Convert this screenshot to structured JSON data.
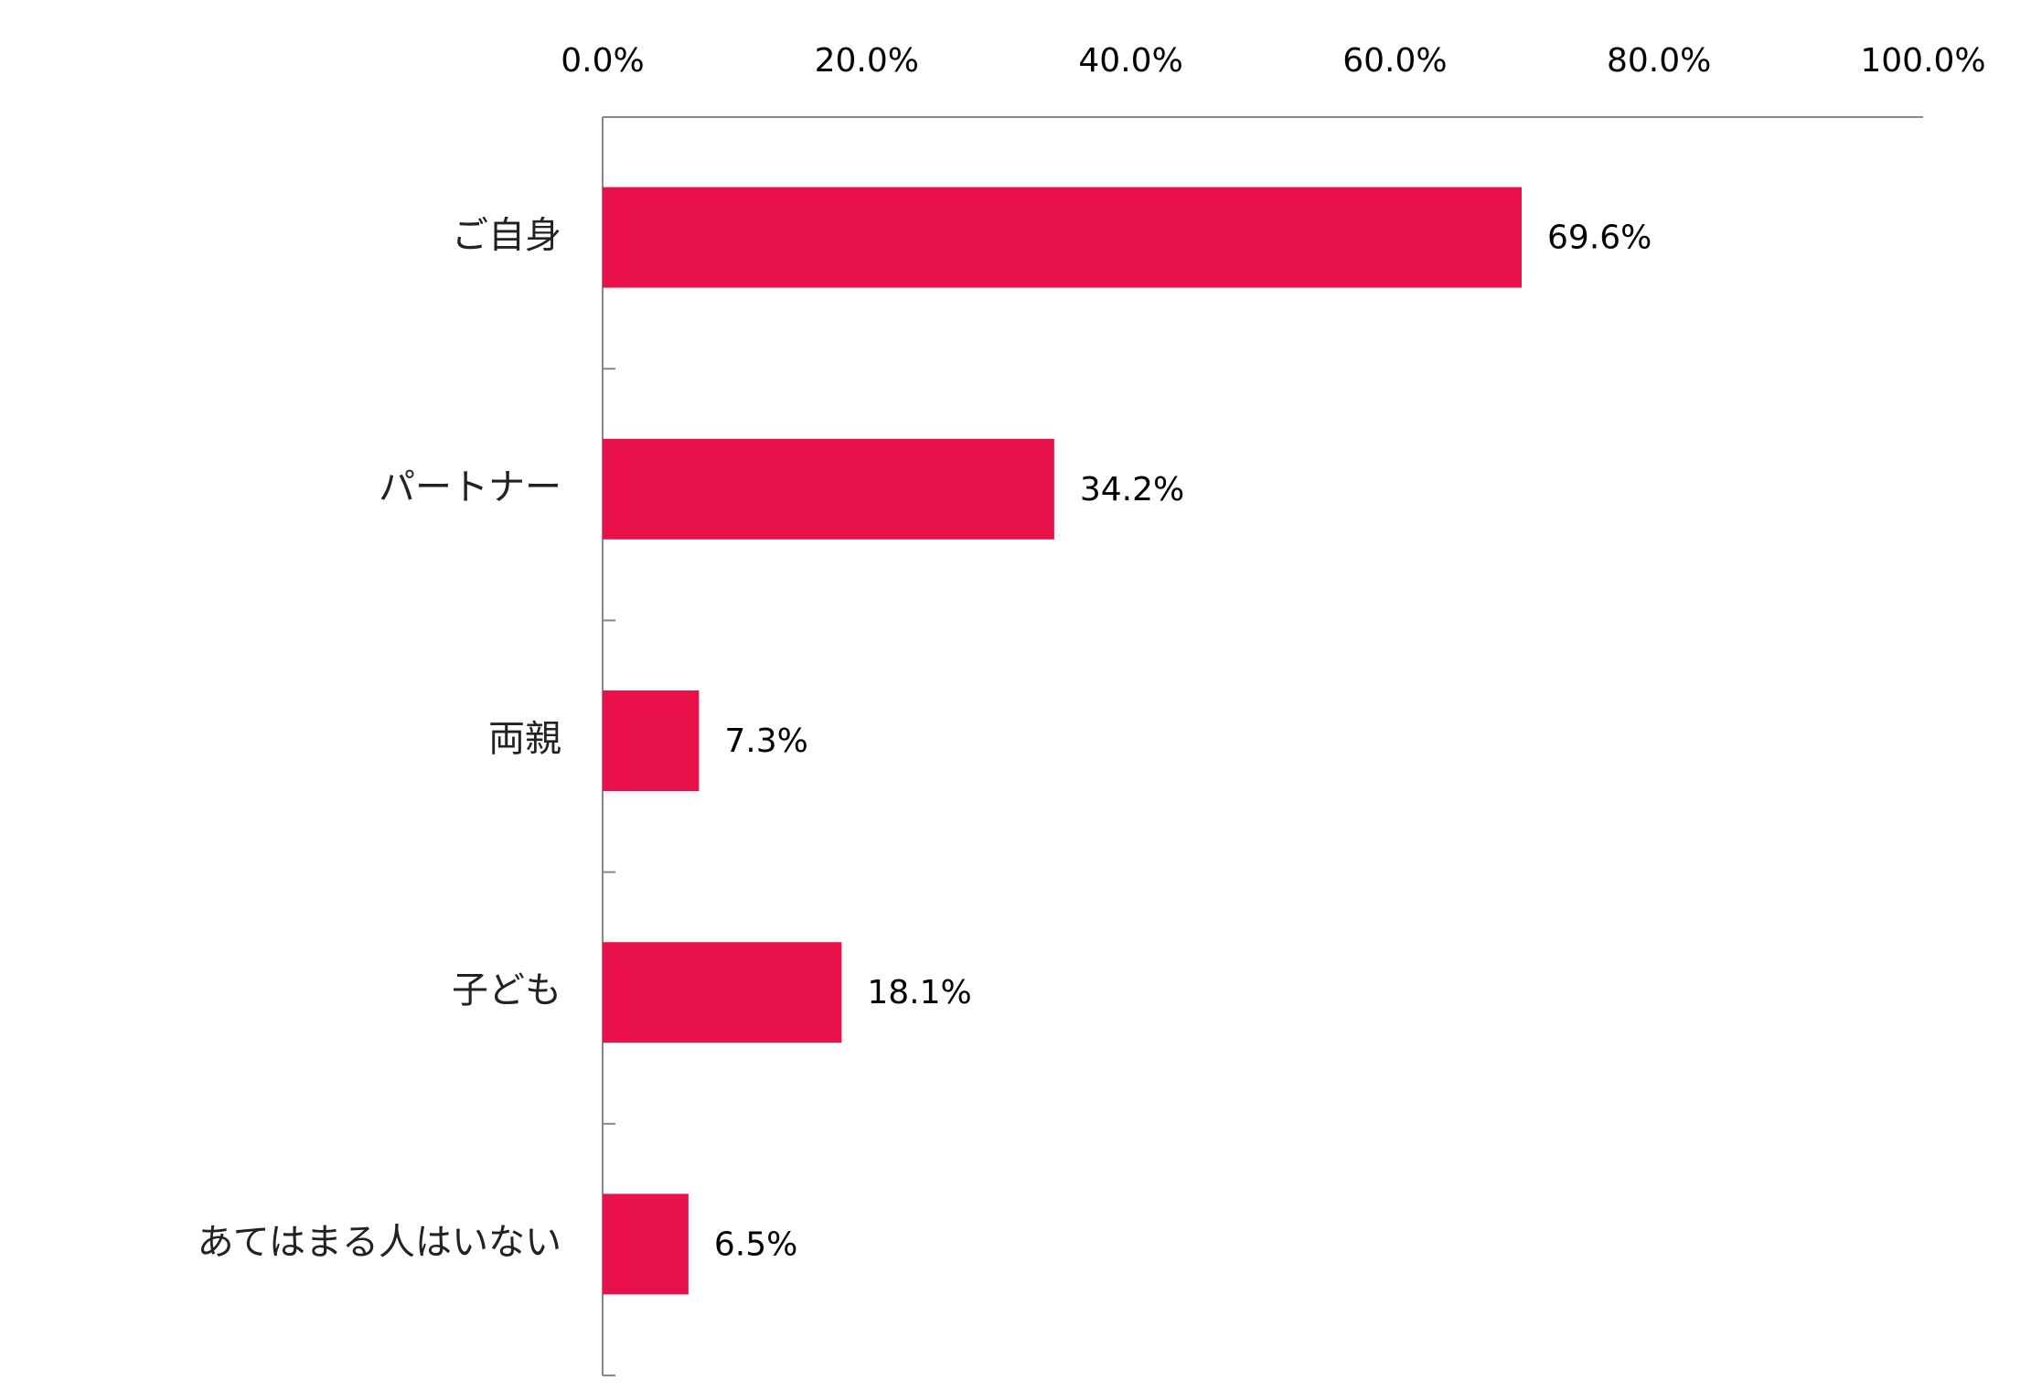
{
  "chart_data": {
    "type": "barh",
    "categories": [
      "ご自身",
      "パートナー",
      "両親",
      "子ども",
      "あてはまる人はいない"
    ],
    "values": [
      69.6,
      34.2,
      7.3,
      18.1,
      6.5
    ],
    "value_labels": [
      "69.6%",
      "34.2%",
      "7.3%",
      "18.1%",
      "6.5%"
    ],
    "color": "#e8114a",
    "xlim": [
      0,
      100
    ],
    "xticks": [
      {
        "value": 0,
        "label": "0.0%"
      },
      {
        "value": 20,
        "label": "20.0%"
      },
      {
        "value": 40,
        "label": "40.0%"
      },
      {
        "value": 60,
        "label": "60.0%"
      },
      {
        "value": 80,
        "label": "80.0%"
      },
      {
        "value": 100,
        "label": "100.0%"
      }
    ],
    "grid": false
  }
}
